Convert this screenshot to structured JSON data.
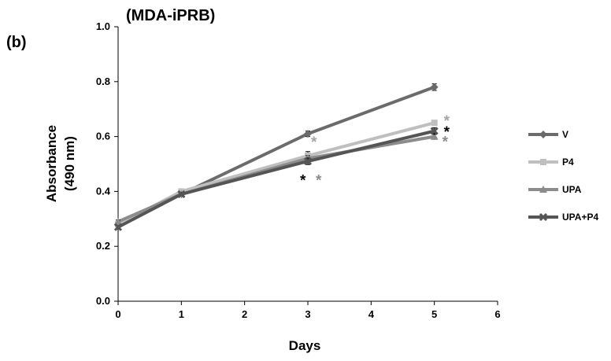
{
  "chart_data": {
    "type": "line",
    "panel_label": "(b)",
    "title": "(MDA-iPRB)",
    "xlabel": "Days",
    "ylabel_lines": [
      "Absorbance",
      "(490 nm)"
    ],
    "xlim": [
      0,
      6
    ],
    "ylim": [
      0,
      1.0
    ],
    "x_ticks": [
      "0",
      "1",
      "2",
      "3",
      "4",
      "5",
      "6"
    ],
    "y_ticks": [
      "0.0",
      "0.2",
      "0.4",
      "0.6",
      "0.8",
      "1.0"
    ],
    "x_tick_values": [
      0,
      1,
      2,
      3,
      4,
      5,
      6
    ],
    "y_tick_values": [
      0,
      0.2,
      0.4,
      0.6,
      0.8,
      1.0
    ],
    "grid": false,
    "legend_position": "right",
    "x": [
      0,
      1,
      3,
      5
    ],
    "series": [
      {
        "name": "V",
        "values": [
          0.28,
          0.39,
          0.61,
          0.78
        ],
        "errors": [
          0.008,
          0.006,
          0.01,
          0.012
        ],
        "color": "#6b6b6b",
        "marker": "diamond"
      },
      {
        "name": "P4",
        "values": [
          0.28,
          0.4,
          0.53,
          0.65
        ],
        "errors": [
          0.006,
          0.006,
          0.015,
          0.008
        ],
        "color": "#bfbfbf",
        "marker": "square"
      },
      {
        "name": "UPA",
        "values": [
          0.29,
          0.39,
          0.52,
          0.6
        ],
        "errors": [
          0.006,
          0.006,
          0.01,
          0.01
        ],
        "color": "#8c8c8c",
        "marker": "triangle"
      },
      {
        "name": "UPA+P4",
        "values": [
          0.27,
          0.39,
          0.51,
          0.62
        ],
        "errors": [
          0.006,
          0.006,
          0.012,
          0.012
        ],
        "color": "#555555",
        "marker": "x"
      }
    ],
    "annotations": [
      {
        "text": "*",
        "x": 3,
        "y": 0.55,
        "color": "#a6a6a6"
      },
      {
        "text": "*",
        "x": 3,
        "y": 0.48,
        "color": "#000000"
      },
      {
        "text": "*",
        "x": 3,
        "y": 0.48,
        "color": "#8c8c8c"
      },
      {
        "text": "*",
        "x": 5,
        "y": 0.65,
        "color": "#a6a6a6"
      },
      {
        "text": "*",
        "x": 5,
        "y": 0.61,
        "color": "#000000"
      },
      {
        "text": "*",
        "x": 5,
        "y": 0.58,
        "color": "#8c8c8c"
      }
    ]
  }
}
